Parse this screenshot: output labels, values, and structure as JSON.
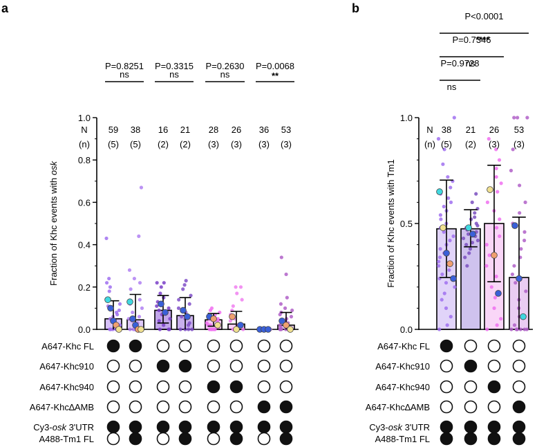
{
  "chart_data": [
    {
      "panel_label": "a",
      "type": "bar",
      "ylabel_pre": "Fraction of Khc events with ",
      "ylabel_italic": "osk",
      "ylim": [
        0,
        1.0
      ],
      "yticks": [
        "0.0",
        "0.2",
        "0.4",
        "0.6",
        "0.8",
        "1.0"
      ],
      "ytick_values": [
        0,
        0.2,
        0.4,
        0.6,
        0.8,
        1.0
      ],
      "bar_colors": [
        "#b48ef0",
        "#c49cf2",
        "#8f5fd8",
        "#9a6fdc",
        "#f3a0f0",
        "#f4aff1",
        "#dcb0ee",
        "#d9a0e4"
      ],
      "point_colors": [
        "#a070f0",
        "#b080f2",
        "#7a3fc8",
        "#8050c8",
        "#f070f0",
        "#f080f0",
        "#c890e8",
        "#b060c8"
      ],
      "values": [
        0.05,
        0.045,
        0.09,
        0.065,
        0.045,
        0.025,
        0.0,
        0.02
      ],
      "error_upper": [
        0.135,
        0.165,
        0.16,
        0.15,
        0.075,
        0.085,
        0.0,
        0.08
      ],
      "error_lower": [
        0.0,
        0.0,
        0.03,
        0.0,
        0.015,
        0.0,
        0.0,
        0.0
      ],
      "N_header": [
        "N",
        "(n)"
      ],
      "N": [
        "59",
        "38",
        "16",
        "21",
        "28",
        "26",
        "36",
        "53"
      ],
      "n": [
        "(5)",
        "(5)",
        "(2)",
        "(2)",
        "(3)",
        "(3)",
        "(3)",
        "(3)"
      ],
      "comparisons": [
        {
          "p": "P=0.8251",
          "sig": "ns",
          "from": 0,
          "to": 1
        },
        {
          "p": "P=0.3315",
          "sig": "ns",
          "from": 2,
          "to": 3
        },
        {
          "p": "P=0.2630",
          "sig": "ns",
          "from": 4,
          "to": 5
        },
        {
          "p": "P=0.0068",
          "sig": "**",
          "from": 6,
          "to": 7
        }
      ],
      "replicate_means": [
        [
          {
            "v": 0.14,
            "c": "#40d8e0"
          },
          {
            "v": 0.1,
            "c": "#3a60d8"
          },
          {
            "v": 0.04,
            "c": "#3a60d8"
          },
          {
            "v": 0.02,
            "c": "#f0a070"
          },
          {
            "v": 0.0,
            "c": "#f0e090"
          }
        ],
        [
          {
            "v": 0.13,
            "c": "#40d8e0"
          },
          {
            "v": 0.05,
            "c": "#3a60d8"
          },
          {
            "v": 0.02,
            "c": "#3a60d8"
          },
          {
            "v": 0.0,
            "c": "#f0a070"
          },
          {
            "v": 0.0,
            "c": "#f0e090"
          }
        ],
        [
          {
            "v": 0.12,
            "c": "#3a60d8"
          },
          {
            "v": 0.08,
            "c": "#3a60d8"
          }
        ],
        [
          {
            "v": 0.09,
            "c": "#3a60d8"
          },
          {
            "v": 0.06,
            "c": "#3a60d8"
          }
        ],
        [
          {
            "v": 0.06,
            "c": "#3a60d8"
          },
          {
            "v": 0.05,
            "c": "#f0a070"
          },
          {
            "v": 0.02,
            "c": "#f0e090"
          }
        ],
        [
          {
            "v": 0.06,
            "c": "#f0a070"
          },
          {
            "v": 0.0,
            "c": "#f0e090"
          },
          {
            "v": 0.02,
            "c": "#3a60d8"
          }
        ],
        [
          {
            "v": 0.0,
            "c": "#3a60d8"
          },
          {
            "v": 0.0,
            "c": "#3a60d8"
          },
          {
            "v": 0.0,
            "c": "#3a60d8"
          }
        ],
        [
          {
            "v": 0.04,
            "c": "#3a60d8"
          },
          {
            "v": 0.02,
            "c": "#f0a070"
          },
          {
            "v": 0.0,
            "c": "#f0e090"
          }
        ]
      ],
      "individual_points": [
        [
          0.43,
          0.24,
          0.22,
          0.2,
          0.18,
          0.14,
          0.12,
          0.11,
          0.1,
          0.09,
          0.08,
          0.07,
          0.06,
          0.05,
          0.04,
          0.03,
          0.02,
          0.01,
          0,
          0,
          0,
          0,
          0,
          0
        ],
        [
          0.67,
          0.44,
          0.28,
          0.24,
          0.22,
          0.19,
          0.14,
          0.12,
          0.1,
          0.08,
          0.06,
          0.05,
          0.04,
          0.03,
          0.02,
          0,
          0,
          0,
          0,
          0
        ],
        [
          0.22,
          0.22,
          0.2,
          0.17,
          0.15,
          0.13,
          0.11,
          0.1,
          0.09,
          0.07,
          0.05,
          0.04,
          0.02,
          0,
          0,
          0
        ],
        [
          0.23,
          0.21,
          0.19,
          0.16,
          0.14,
          0.12,
          0.1,
          0.08,
          0.06,
          0.05,
          0.03,
          0.02,
          0,
          0,
          0,
          0
        ],
        [
          0.1,
          0.09,
          0.08,
          0.07,
          0.06,
          0.05,
          0.05,
          0.04,
          0.03,
          0.02,
          0.02,
          0.01,
          0,
          0,
          0,
          0,
          0
        ],
        [
          0.2,
          0.2,
          0.17,
          0.14,
          0.11,
          0.09,
          0.07,
          0.05,
          0.04,
          0.02,
          0,
          0,
          0,
          0,
          0
        ],
        [
          0,
          0,
          0,
          0,
          0,
          0,
          0,
          0,
          0,
          0
        ],
        [
          0.34,
          0.26,
          0.15,
          0.12,
          0.1,
          0.09,
          0.08,
          0.07,
          0.06,
          0.05,
          0.04,
          0.03,
          0.02,
          0.01,
          0,
          0,
          0,
          0,
          0
        ]
      ],
      "rows": [
        {
          "label": "A647-Khc FL",
          "filled": [
            1,
            1,
            0,
            0,
            0,
            0,
            0,
            0
          ]
        },
        {
          "label": "A647-Khc910",
          "filled": [
            0,
            0,
            1,
            1,
            0,
            0,
            0,
            0
          ]
        },
        {
          "label": "A647-Khc940",
          "filled": [
            0,
            0,
            0,
            0,
            1,
            1,
            0,
            0
          ]
        },
        {
          "label": "A647-Khc∆AMB",
          "filled": [
            0,
            0,
            0,
            0,
            0,
            0,
            1,
            1
          ]
        },
        {
          "label_pre": "Cy3-",
          "label_italic": "osk",
          "label_post": " 3'UTR",
          "filled": [
            1,
            1,
            1,
            1,
            1,
            1,
            1,
            1
          ]
        },
        {
          "label": "A488-Tm1 FL",
          "filled": [
            0,
            1,
            0,
            1,
            0,
            1,
            0,
            1
          ]
        }
      ]
    },
    {
      "panel_label": "b",
      "type": "bar",
      "ylabel": "Fraction of Khc events with Tm1",
      "ylim": [
        0,
        1.0
      ],
      "yticks": [
        "0.0",
        "0.5",
        "1.0"
      ],
      "ytick_values": [
        0,
        0.5,
        1.0
      ],
      "bar_colors": [
        "#c8b0f4",
        "#a790e0",
        "#f4b4f0",
        "#d8a4e8"
      ],
      "point_colors": [
        "#a070f0",
        "#7a4fc0",
        "#f070f0",
        "#b060c8"
      ],
      "values": [
        0.475,
        0.475,
        0.5,
        0.245
      ],
      "error_upper": [
        0.705,
        0.565,
        0.775,
        0.53
      ],
      "error_lower": [
        0.245,
        0.39,
        0.225,
        0.0
      ],
      "N_header": [
        "N",
        "(n)"
      ],
      "N": [
        "38",
        "21",
        "26",
        "53"
      ],
      "n": [
        "(5)",
        "(2)",
        "(3)",
        "(3)"
      ],
      "comparisons": [
        {
          "p": "P=0.9728",
          "sig": "ns",
          "from": 0,
          "to": 1
        },
        {
          "p": "P=0.7346",
          "sig": "ns",
          "from": 0,
          "to": 2
        },
        {
          "p": "P<0.0001",
          "sig": "****",
          "from": 0,
          "to": 3
        }
      ],
      "replicate_means": [
        [
          {
            "v": 0.65,
            "c": "#40d8e0"
          },
          {
            "v": 0.48,
            "c": "#f0e090"
          },
          {
            "v": 0.36,
            "c": "#3a60d8"
          },
          {
            "v": 0.31,
            "c": "#f0a070"
          },
          {
            "v": 0.24,
            "c": "#3a60d8"
          }
        ],
        [
          {
            "v": 0.48,
            "c": "#40d8e0"
          },
          {
            "v": 0.45,
            "c": "#3a60d8"
          }
        ],
        [
          {
            "v": 0.66,
            "c": "#f0e090"
          },
          {
            "v": 0.35,
            "c": "#f0a070"
          },
          {
            "v": 0.17,
            "c": "#3a60d8"
          }
        ],
        [
          {
            "v": 0.49,
            "c": "#3a60d8"
          },
          {
            "v": 0.24,
            "c": "#3a60d8"
          },
          {
            "v": 0.06,
            "c": "#40d8e0"
          }
        ]
      ],
      "individual_points": [
        [
          1.0,
          0.9,
          0.85,
          0.78,
          0.72,
          0.7,
          0.67,
          0.64,
          0.62,
          0.6,
          0.58,
          0.56,
          0.54,
          0.52,
          0.5,
          0.48,
          0.46,
          0.44,
          0.42,
          0.4,
          0.38,
          0.36,
          0.34,
          0.32,
          0.3,
          0.28,
          0.26,
          0.24,
          0.22,
          0.2,
          0.17,
          0.14,
          0.1,
          0.06,
          0.02,
          0
        ],
        [
          0.64,
          0.6,
          0.57,
          0.55,
          0.53,
          0.52,
          0.5,
          0.49,
          0.48,
          0.47,
          0.46,
          0.45,
          0.44,
          0.43,
          0.42,
          0.41,
          0.4,
          0.38,
          0.36,
          0.34,
          0.3
        ],
        [
          0.9,
          0.85,
          0.8,
          0.76,
          0.72,
          0.69,
          0.65,
          0.6,
          0.56,
          0.52,
          0.48,
          0.44,
          0.4,
          0.35,
          0.3,
          0.25,
          0.2,
          0.15,
          0.1,
          0.05,
          0.02,
          0
        ],
        [
          1.0,
          1.0,
          1.0,
          0.85,
          0.75,
          0.68,
          0.6,
          0.55,
          0.5,
          0.46,
          0.42,
          0.38,
          0.34,
          0.3,
          0.26,
          0.22,
          0.18,
          0.14,
          0.1,
          0.06,
          0.02,
          0,
          0,
          0,
          0,
          0,
          0,
          0
        ]
      ],
      "rows": [
        {
          "label": "A647-Khc FL",
          "filled": [
            1,
            0,
            0,
            0
          ]
        },
        {
          "label": "A647-Khc910",
          "filled": [
            0,
            1,
            0,
            0
          ]
        },
        {
          "label": "A647-Khc940",
          "filled": [
            0,
            0,
            1,
            0
          ]
        },
        {
          "label": "A647-Khc∆AMB",
          "filled": [
            0,
            0,
            0,
            1
          ]
        },
        {
          "label_pre": "Cy3-",
          "label_italic": "osk",
          "label_post": " 3'UTR",
          "filled": [
            1,
            1,
            1,
            1
          ]
        },
        {
          "label": "A488-Tm1 FL",
          "filled": [
            1,
            1,
            1,
            1
          ]
        }
      ]
    }
  ]
}
